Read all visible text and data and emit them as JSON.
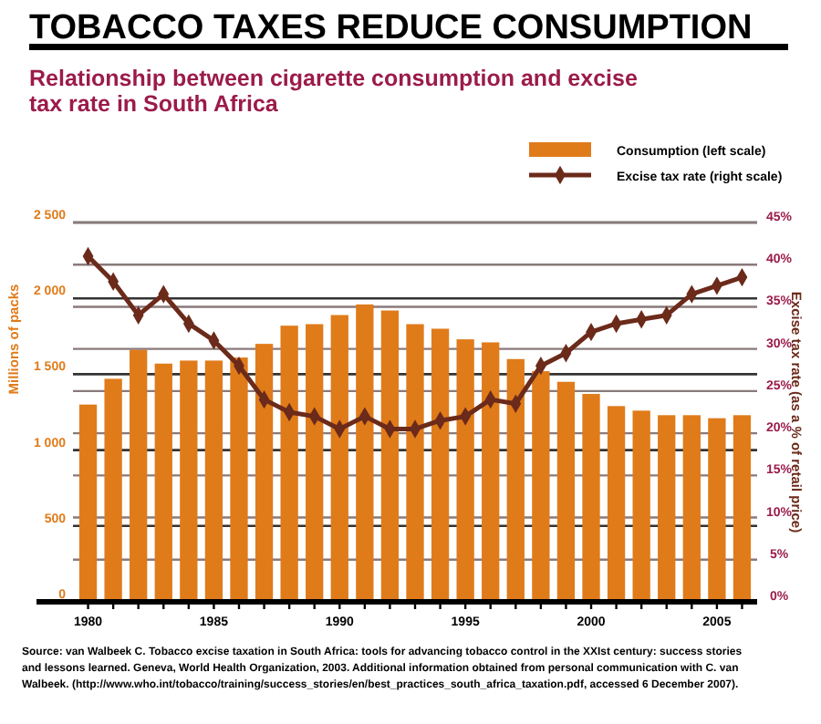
{
  "chart_data": {
    "type": "bar",
    "title": "TOBACCO TAXES REDUCE CONSUMPTION",
    "subtitle": "Relationship between cigarette consumption and excise tax rate in South Africa",
    "ylabel": "Millions of packs",
    "y2label": "Excise tax rate (as a % of retail price)",
    "categories": [
      "1980",
      null,
      null,
      null,
      null,
      "1985",
      null,
      null,
      null,
      null,
      "1990",
      null,
      null,
      null,
      null,
      "1995",
      null,
      null,
      null,
      null,
      "2000",
      null,
      null,
      null,
      null,
      "2005",
      null
    ],
    "series": [
      {
        "name": "Consumption (left scale)",
        "color": "#e07b1a",
        "values": [
          1300,
          1470,
          1660,
          1570,
          1590,
          1590,
          1610,
          1700,
          1820,
          1830,
          1890,
          1960,
          1920,
          1830,
          1800,
          1730,
          1710,
          1600,
          1520,
          1450,
          1370,
          1290,
          1260,
          1230,
          1230,
          1210,
          1230
        ]
      },
      {
        "name": "Excise tax rate (right scale)",
        "type": "line",
        "axis": "y2",
        "color": "#6b2a1a",
        "values": [
          41,
          38,
          34,
          36.5,
          33,
          31,
          28,
          24,
          22.5,
          22,
          20.5,
          22,
          20.5,
          20.5,
          21.5,
          22,
          24,
          23.5,
          28,
          29.5,
          32,
          33,
          33.5,
          34,
          36.5,
          37.5,
          38.5
        ]
      }
    ],
    "ylim": [
      0,
      2500
    ],
    "yticks": [
      {
        "value": 0,
        "label": "0"
      },
      {
        "value": 500,
        "label": "500"
      },
      {
        "value": 1000,
        "label": "1 000"
      },
      {
        "value": 1500,
        "label": "1 500"
      },
      {
        "value": 2000,
        "label": "2 000"
      },
      {
        "value": 2500,
        "label": "2 500"
      }
    ],
    "y2lim": [
      0,
      45
    ],
    "y2ticks": [
      {
        "value": 0,
        "label": "0%"
      },
      {
        "value": 5,
        "label": "5%"
      },
      {
        "value": 10,
        "label": "10%"
      },
      {
        "value": 15,
        "label": "15%"
      },
      {
        "value": 20,
        "label": "20%"
      },
      {
        "value": 25,
        "label": "25%"
      },
      {
        "value": 30,
        "label": "30%"
      },
      {
        "value": 35,
        "label": "35%"
      },
      {
        "value": 40,
        "label": "40%"
      },
      {
        "value": 45,
        "label": "45%"
      }
    ],
    "grid": true,
    "legend": "top right",
    "marker": "diamond",
    "line_style": "solid",
    "annotations": [
      "Source: van Walbeek C. Tobacco excise taxation in South Africa: tools for advancing tobacco control in the XXIst century: success stories and lessons learned. Geneva, World Health Organization, 2003. Additional information obtained from personal communication with C. van Walbeek. (http://www.who.int/tobacco/training/success_stories/en/best_practices_south_africa_taxation.pdf, accessed 6 December 2007)."
    ]
  }
}
